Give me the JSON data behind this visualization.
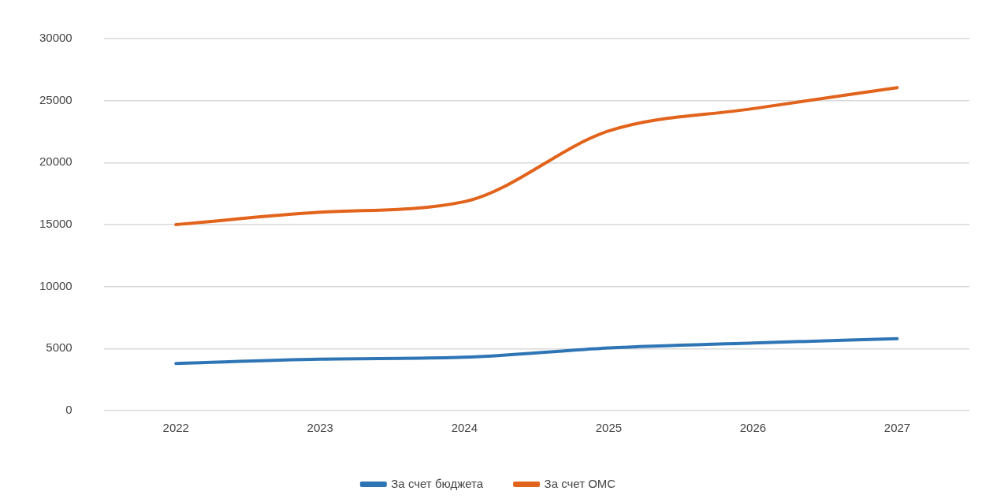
{
  "chart_data": {
    "type": "line",
    "categories": [
      "2022",
      "2023",
      "2024",
      "2025",
      "2026",
      "2027"
    ],
    "series": [
      {
        "name": "За счет бюджета",
        "color": "#2e75b6",
        "values": [
          3800,
          4150,
          4300,
          5050,
          5450,
          5800
        ]
      },
      {
        "name": "За счет ОМС",
        "color": "#e2631b",
        "values": [
          15000,
          16000,
          16850,
          22550,
          24350,
          26050
        ]
      }
    ],
    "ylim": [
      0,
      30000
    ],
    "yticks": [
      0,
      5000,
      10000,
      15000,
      20000,
      25000,
      30000
    ],
    "grid": "y",
    "legend": "bottom",
    "marker": "none",
    "line_style": "solid"
  }
}
